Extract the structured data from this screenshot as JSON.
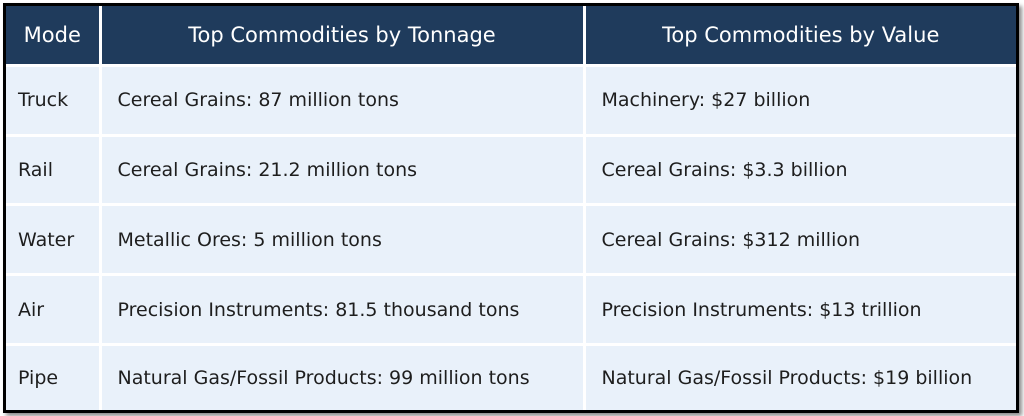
{
  "table": {
    "header": [
      "Mode",
      "Top Commodities by Tonnage",
      "Top Commodities by Value"
    ],
    "rows": [
      [
        "Truck",
        "Cereal Grains: 87 million tons",
        "Machinery: $27 billion"
      ],
      [
        "Rail",
        "Cereal Grains: 21.2 million tons",
        "Cereal Grains: $3.3 billion"
      ],
      [
        "Water",
        "Metallic Ores: 5 million tons",
        "Cereal Grains: $312 million"
      ],
      [
        "Air",
        "Precision Instruments: 81.5 thousand tons",
        "Precision Instruments: $13 trillion"
      ],
      [
        "Pipe",
        "Natural Gas/Fossil Products: 99 million tons",
        "Natural Gas/Fossil Products: $19 billion"
      ]
    ]
  }
}
